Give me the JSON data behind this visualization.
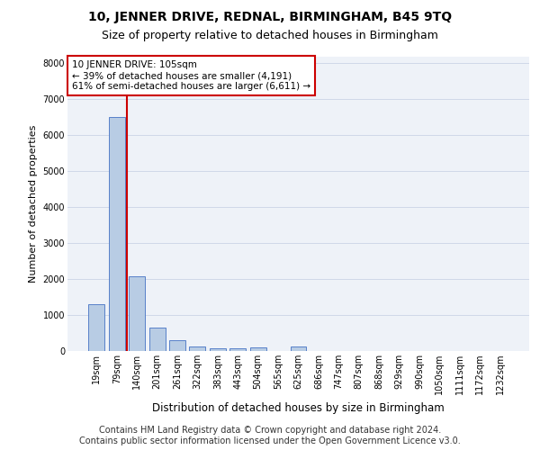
{
  "title_line1": "10, JENNER DRIVE, REDNAL, BIRMINGHAM, B45 9TQ",
  "title_line2": "Size of property relative to detached houses in Birmingham",
  "xlabel": "Distribution of detached houses by size in Birmingham",
  "ylabel": "Number of detached properties",
  "categories": [
    "19sqm",
    "79sqm",
    "140sqm",
    "201sqm",
    "261sqm",
    "322sqm",
    "383sqm",
    "443sqm",
    "504sqm",
    "565sqm",
    "625sqm",
    "686sqm",
    "747sqm",
    "807sqm",
    "868sqm",
    "929sqm",
    "990sqm",
    "1050sqm",
    "1111sqm",
    "1172sqm",
    "1232sqm"
  ],
  "values": [
    1300,
    6500,
    2080,
    650,
    290,
    130,
    85,
    65,
    110,
    0,
    120,
    0,
    0,
    0,
    0,
    0,
    0,
    0,
    0,
    0,
    0
  ],
  "bar_color": "#b8cce4",
  "bar_edge_color": "#4472c4",
  "property_line_x": 1.5,
  "annotation_text": "10 JENNER DRIVE: 105sqm\n← 39% of detached houses are smaller (4,191)\n61% of semi-detached houses are larger (6,611) →",
  "annotation_box_color": "#ffffff",
  "annotation_box_edge": "#cc0000",
  "red_line_color": "#cc0000",
  "ylim": [
    0,
    8200
  ],
  "yticks": [
    0,
    1000,
    2000,
    3000,
    4000,
    5000,
    6000,
    7000,
    8000
  ],
  "grid_color": "#d0d8e8",
  "bg_color": "#eef2f8",
  "footer_line1": "Contains HM Land Registry data © Crown copyright and database right 2024.",
  "footer_line2": "Contains public sector information licensed under the Open Government Licence v3.0.",
  "title_fontsize": 10,
  "subtitle_fontsize": 9,
  "footer_fontsize": 7,
  "tick_fontsize": 7,
  "ylabel_fontsize": 8,
  "xlabel_fontsize": 8.5
}
